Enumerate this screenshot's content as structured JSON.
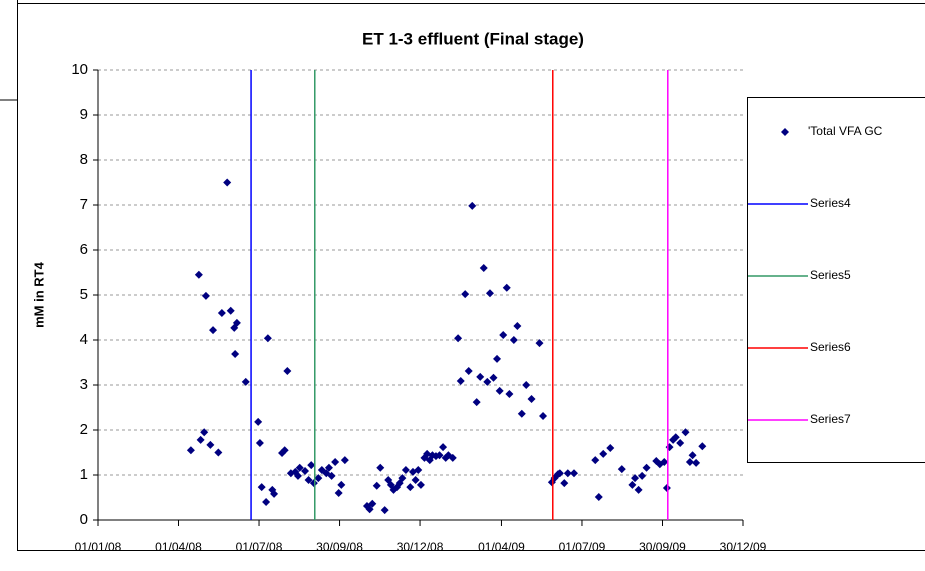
{
  "chart_data": {
    "type": "scatter",
    "title": "ET 1-3 effluent (Final stage)",
    "y_label": "mM in RT4",
    "xlim": [
      "2008-01-01",
      "2009-12-30"
    ],
    "xticks": [
      {
        "value": "2008-01-01",
        "label": "01/01/08"
      },
      {
        "value": "2008-04-01",
        "label": "01/04/08"
      },
      {
        "value": "2008-07-01",
        "label": "01/07/08"
      },
      {
        "value": "2008-09-30",
        "label": "30/09/08"
      },
      {
        "value": "2008-12-30",
        "label": "30/12/08"
      },
      {
        "value": "2009-04-01",
        "label": "01/04/09"
      },
      {
        "value": "2009-07-01",
        "label": "01/07/09"
      },
      {
        "value": "2009-09-30",
        "label": "30/09/09"
      },
      {
        "value": "2009-12-30",
        "label": "30/12/09"
      }
    ],
    "ylim": [
      0,
      10
    ],
    "yticks": [
      0,
      1,
      2,
      3,
      4,
      5,
      6,
      7,
      8,
      9,
      10
    ],
    "grid": true,
    "legend": "right",
    "series": [
      {
        "name": "'Total VFA GC",
        "type": "scatter",
        "color": "#000080",
        "x": [
          "2008-04-15",
          "2008-04-24",
          "2008-04-26",
          "2008-04-30",
          "2008-05-02",
          "2008-05-07",
          "2008-05-10",
          "2008-05-16",
          "2008-05-20",
          "2008-05-26",
          "2008-05-30",
          "2008-06-04",
          "2008-06-03",
          "2008-06-06",
          "2008-06-16",
          "2008-06-30",
          "2008-07-02",
          "2008-07-04",
          "2008-07-09",
          "2008-07-11",
          "2008-07-16",
          "2008-07-18",
          "2008-07-27",
          "2008-07-30",
          "2008-08-02",
          "2008-08-06",
          "2008-08-11",
          "2008-08-14",
          "2008-08-16",
          "2008-08-22",
          "2008-08-26",
          "2008-08-29",
          "2008-09-01",
          "2008-09-06",
          "2008-09-10",
          "2008-09-15",
          "2008-09-18",
          "2008-09-21",
          "2008-09-25",
          "2008-09-29",
          "2008-10-02",
          "2008-10-06",
          "2008-10-31",
          "2008-11-03",
          "2008-11-06",
          "2008-11-11",
          "2008-11-15",
          "2008-11-20",
          "2008-11-24",
          "2008-11-27",
          "2008-11-30",
          "2008-12-04",
          "2008-12-07",
          "2008-12-10",
          "2008-12-14",
          "2008-12-19",
          "2008-12-22",
          "2008-12-25",
          "2008-12-28",
          "2008-12-31",
          "2009-01-04",
          "2009-01-07",
          "2009-01-10",
          "2009-01-13",
          "2009-01-17",
          "2009-01-21",
          "2009-01-25",
          "2009-01-28",
          "2009-01-31",
          "2009-02-05",
          "2009-02-11",
          "2009-02-14",
          "2009-02-19",
          "2009-02-23",
          "2009-02-27",
          "2009-03-04",
          "2009-03-08",
          "2009-03-12",
          "2009-03-16",
          "2009-03-19",
          "2009-03-23",
          "2009-03-27",
          "2009-03-30",
          "2009-04-03",
          "2009-04-07",
          "2009-04-10",
          "2009-04-15",
          "2009-04-19",
          "2009-04-24",
          "2009-04-29",
          "2009-05-05",
          "2009-05-14",
          "2009-05-18",
          "2009-05-28",
          "2009-05-31",
          "2009-06-04",
          "2009-06-06",
          "2009-06-11",
          "2009-06-15",
          "2009-06-22",
          "2009-07-16",
          "2009-07-20",
          "2009-07-25",
          "2009-08-02",
          "2009-08-15",
          "2009-08-27",
          "2009-08-30",
          "2009-09-03",
          "2009-09-07",
          "2009-09-12",
          "2009-09-23",
          "2009-09-27",
          "2009-10-02",
          "2009-10-05",
          "2009-10-08",
          "2009-10-12",
          "2009-10-15",
          "2009-10-20",
          "2009-10-26",
          "2009-10-31",
          "2009-11-03",
          "2009-11-07",
          "2009-11-14"
        ],
        "values": [
          1.55,
          5.45,
          1.78,
          1.95,
          4.98,
          1.67,
          4.22,
          1.5,
          4.6,
          7.5,
          4.65,
          3.69,
          4.27,
          4.38,
          3.07,
          2.18,
          1.71,
          0.73,
          0.4,
          4.04,
          0.67,
          0.58,
          1.49,
          1.55,
          3.31,
          1.04,
          1.07,
          0.98,
          1.16,
          1.09,
          0.89,
          1.22,
          0.82,
          0.93,
          1.11,
          1.04,
          1.16,
          0.98,
          1.29,
          0.6,
          0.78,
          1.33,
          0.31,
          0.24,
          0.36,
          0.76,
          1.16,
          0.22,
          0.89,
          0.78,
          0.67,
          0.73,
          0.82,
          0.93,
          1.11,
          0.73,
          1.07,
          0.89,
          1.11,
          0.78,
          1.38,
          1.47,
          1.33,
          1.44,
          1.42,
          1.44,
          1.62,
          1.38,
          1.44,
          1.38,
          4.04,
          3.09,
          5.02,
          3.31,
          6.98,
          2.62,
          3.18,
          5.6,
          3.07,
          5.04,
          3.16,
          3.58,
          2.87,
          4.11,
          5.16,
          2.8,
          4.0,
          4.31,
          2.36,
          3.0,
          2.69,
          3.93,
          2.31,
          0.84,
          0.93,
          1.02,
          1.04,
          0.82,
          1.04,
          1.04,
          1.33,
          0.51,
          1.47,
          1.6,
          1.13,
          0.78,
          0.93,
          0.67,
          0.98,
          1.16,
          1.31,
          1.24,
          1.29,
          0.71,
          1.62,
          1.78,
          1.84,
          1.71,
          1.95,
          1.29,
          1.44,
          1.27,
          1.64
        ]
      },
      {
        "name": "Series4",
        "type": "line",
        "color": "#0000ff",
        "x": [
          "2008-06-22",
          "2008-06-22"
        ],
        "values": [
          0,
          10
        ]
      },
      {
        "name": "Series5",
        "type": "line",
        "color": "#339966",
        "x": [
          "2008-09-02",
          "2008-09-02"
        ],
        "values": [
          0,
          10
        ]
      },
      {
        "name": "Series6",
        "type": "line",
        "color": "#ff0000",
        "x": [
          "2009-05-29",
          "2009-05-29"
        ],
        "values": [
          0,
          10
        ]
      },
      {
        "name": "Series7",
        "type": "line",
        "color": "#ff00ff",
        "x": [
          "2009-10-06",
          "2009-10-06"
        ],
        "values": [
          0,
          10
        ]
      }
    ]
  }
}
